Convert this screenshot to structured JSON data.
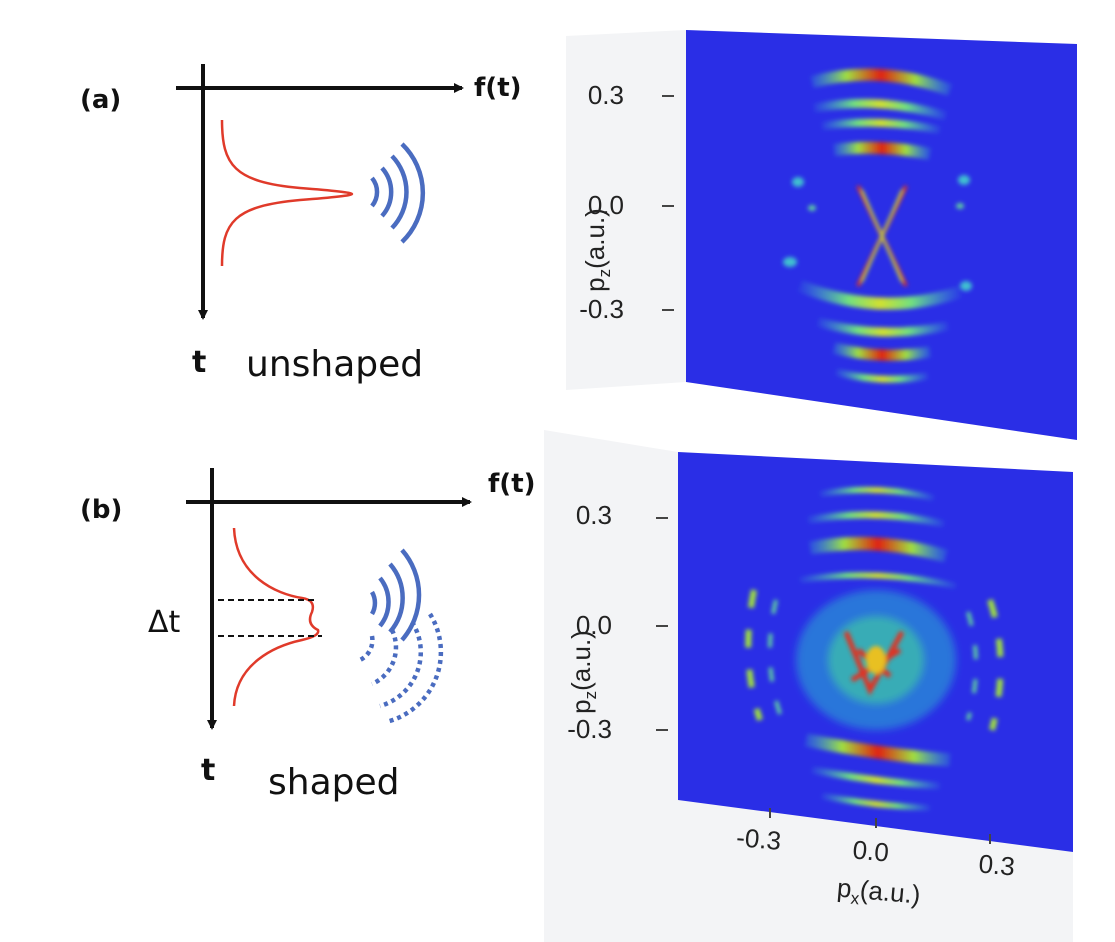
{
  "panel_a": {
    "label": "(a)",
    "axis_x_label": "f(t)",
    "axis_y_label": "t",
    "caption": "unshaped"
  },
  "panel_b": {
    "label": "(b)",
    "axis_x_label": "f(t)",
    "axis_y_label": "t",
    "caption": "shaped",
    "delay_label": "Δt"
  },
  "colors": {
    "pulse": "#e03a2a",
    "wavefront": "#4a6cc0",
    "map_background": "#2a2ee6",
    "axis": "#111111"
  },
  "map_top": {
    "y_label_main": "p",
    "y_label_sub": "z",
    "y_label_unit": "(a.u.)",
    "y_ticks": [
      "0.3",
      "0.0",
      "-0.3"
    ]
  },
  "map_bottom": {
    "y_label_main": "p",
    "y_label_sub": "z",
    "y_label_unit": "(a.u.)",
    "y_ticks": [
      "0.3",
      "0.0",
      "-0.3"
    ],
    "x_label_main": "p",
    "x_label_sub": "x",
    "x_label_unit": "(a.u.)",
    "x_ticks": [
      "-0.3",
      "0.0",
      "0.3"
    ]
  }
}
